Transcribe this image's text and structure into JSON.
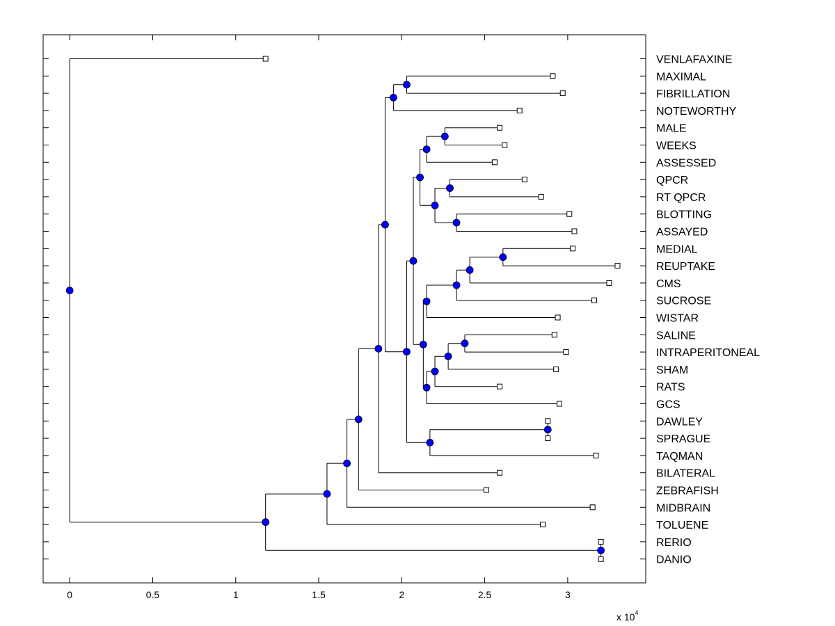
{
  "chart_data": {
    "type": "dendrogram",
    "title": "",
    "xlabel": "",
    "ylabel": "",
    "x_scale_label": "x 10",
    "x_scale_exponent": "4",
    "xlim": [
      -0.16,
      3.47
    ],
    "xticks": [
      0,
      0.5,
      1,
      1.5,
      2,
      2.5,
      3
    ],
    "xtick_labels": [
      "0",
      "0.5",
      "1",
      "1.5",
      "2",
      "2.5",
      "3"
    ],
    "colors": {
      "node": "#0000ff",
      "line": "#000000",
      "leaf_fill": "#ffffff"
    },
    "leaves": [
      {
        "label": "VENLAFAXINE",
        "x": 1.18
      },
      {
        "label": "MAXIMAL",
        "x": 2.91
      },
      {
        "label": "FIBRILLATION",
        "x": 2.97
      },
      {
        "label": "NOTEWORTHY",
        "x": 2.71
      },
      {
        "label": "MALE",
        "x": 2.59
      },
      {
        "label": "WEEKS",
        "x": 2.62
      },
      {
        "label": "ASSESSED",
        "x": 2.56
      },
      {
        "label": "QPCR",
        "x": 2.74
      },
      {
        "label": "RT QPCR",
        "x": 2.84
      },
      {
        "label": "BLOTTING",
        "x": 3.01
      },
      {
        "label": "ASSAYED",
        "x": 3.04
      },
      {
        "label": "MEDIAL",
        "x": 3.03
      },
      {
        "label": "REUPTAKE",
        "x": 3.3
      },
      {
        "label": "CMS",
        "x": 3.25
      },
      {
        "label": "SUCROSE",
        "x": 3.16
      },
      {
        "label": "WISTAR",
        "x": 2.94
      },
      {
        "label": "SALINE",
        "x": 2.92
      },
      {
        "label": "INTRAPERITONEAL",
        "x": 2.99
      },
      {
        "label": "SHAM",
        "x": 2.93
      },
      {
        "label": "RATS",
        "x": 2.59
      },
      {
        "label": "GCS",
        "x": 2.95
      },
      {
        "label": "DAWLEY",
        "x": 2.88
      },
      {
        "label": "SPRAGUE",
        "x": 2.88
      },
      {
        "label": "TAQMAN",
        "x": 3.17
      },
      {
        "label": "BILATERAL",
        "x": 2.59
      },
      {
        "label": "ZEBRAFISH",
        "x": 2.51
      },
      {
        "label": "MIDBRAIN",
        "x": 3.15
      },
      {
        "label": "TOLUENE",
        "x": 2.85
      },
      {
        "label": "RERIO",
        "x": 3.2
      },
      {
        "label": "DANIO",
        "x": 3.2
      }
    ],
    "merges": [
      {
        "id": "n1",
        "x": 2.03,
        "children": [
          "L1",
          "L2"
        ]
      },
      {
        "id": "n2",
        "x": 1.95,
        "children": [
          "n1",
          "L3"
        ]
      },
      {
        "id": "n3",
        "x": 2.26,
        "children": [
          "L4",
          "L5"
        ]
      },
      {
        "id": "n4",
        "x": 2.15,
        "children": [
          "n3",
          "L6"
        ]
      },
      {
        "id": "n5",
        "x": 2.29,
        "children": [
          "L7",
          "L8"
        ]
      },
      {
        "id": "n6",
        "x": 2.33,
        "children": [
          "L9",
          "L10"
        ]
      },
      {
        "id": "n7",
        "x": 2.2,
        "children": [
          "n5",
          "n6"
        ]
      },
      {
        "id": "n8",
        "x": 2.11,
        "children": [
          "n4",
          "n7"
        ]
      },
      {
        "id": "n9",
        "x": 2.61,
        "children": [
          "L11",
          "L12"
        ]
      },
      {
        "id": "n10",
        "x": 2.41,
        "children": [
          "n9",
          "L13"
        ]
      },
      {
        "id": "n11",
        "x": 2.33,
        "children": [
          "n10",
          "L14"
        ]
      },
      {
        "id": "n12",
        "x": 2.15,
        "children": [
          "n11",
          "L15"
        ]
      },
      {
        "id": "n13",
        "x": 2.38,
        "children": [
          "L16",
          "L17"
        ]
      },
      {
        "id": "n14",
        "x": 2.28,
        "children": [
          "n13",
          "L18"
        ]
      },
      {
        "id": "n15",
        "x": 2.2,
        "children": [
          "n14",
          "L19"
        ]
      },
      {
        "id": "n16",
        "x": 2.15,
        "children": [
          "n15",
          "L20"
        ]
      },
      {
        "id": "n17",
        "x": 2.13,
        "children": [
          "n12",
          "n16"
        ]
      },
      {
        "id": "n18",
        "x": 2.07,
        "children": [
          "n8",
          "n17"
        ]
      },
      {
        "id": "n19",
        "x": 2.88,
        "children": [
          "L21",
          "L22"
        ]
      },
      {
        "id": "n20",
        "x": 2.17,
        "children": [
          "n19",
          "L23"
        ]
      },
      {
        "id": "n21",
        "x": 2.03,
        "children": [
          "n18",
          "n20"
        ]
      },
      {
        "id": "n22",
        "x": 1.9,
        "children": [
          "n2",
          "n21"
        ]
      },
      {
        "id": "n23",
        "x": 1.86,
        "children": [
          "n22",
          "L24"
        ]
      },
      {
        "id": "n24",
        "x": 1.74,
        "children": [
          "n23",
          "L25"
        ]
      },
      {
        "id": "n25",
        "x": 1.67,
        "children": [
          "n24",
          "L26"
        ]
      },
      {
        "id": "n26",
        "x": 1.55,
        "children": [
          "n25",
          "L27"
        ]
      },
      {
        "id": "n27",
        "x": 3.2,
        "children": [
          "L28",
          "L29"
        ]
      },
      {
        "id": "n28",
        "x": 1.18,
        "children": [
          "n26",
          "n27"
        ]
      },
      {
        "id": "n29",
        "x": 0.0,
        "children": [
          "L0",
          "n28"
        ]
      }
    ]
  }
}
